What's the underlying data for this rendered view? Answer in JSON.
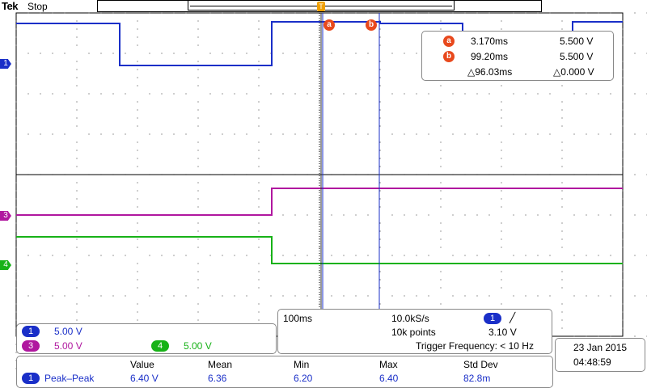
{
  "header": {
    "brand": "Tek",
    "run_state": "Stop",
    "trigger_marker": "T"
  },
  "colors": {
    "ch1": "#1a2fc8",
    "ch3": "#b0179f",
    "ch4": "#17b217",
    "cursor_line": "#1a2fc8",
    "cursor_tag": "#e8491d",
    "grid": "#000000"
  },
  "cursors": {
    "a_tag": "a",
    "b_tag": "b",
    "a_time": "3.170ms",
    "a_volt": "5.500 V",
    "b_time": "99.20ms",
    "b_volt": "5.500 V",
    "delta_time": "△96.03ms",
    "delta_volt": "△0.000 V"
  },
  "channel_markers": {
    "ch1": "1",
    "ch3": "3",
    "ch4": "4"
  },
  "channels": [
    {
      "id": "1",
      "scale": "5.00 V"
    },
    {
      "id": "3",
      "scale": "5.00 V"
    },
    {
      "id": "4",
      "scale": "5.00 V"
    }
  ],
  "acquisition": {
    "timebase": "100ms",
    "sample_rate": "10.0kS/s",
    "record_length": "10k points",
    "trigger_source": "1",
    "trigger_slope": "╱",
    "trigger_level": "3.10 V",
    "trigger_frequency": "Trigger Frequency: < 10 Hz"
  },
  "datetime": {
    "date": "23 Jan  2015",
    "time": "04:48:59"
  },
  "measurements": {
    "headers": [
      "Value",
      "Mean",
      "Min",
      "Max",
      "Std Dev"
    ],
    "rows": [
      {
        "channel": "1",
        "name": "Peak–Peak",
        "values": [
          "6.40 V",
          "6.36",
          "6.20",
          "6.40",
          "82.8m"
        ]
      }
    ]
  }
}
